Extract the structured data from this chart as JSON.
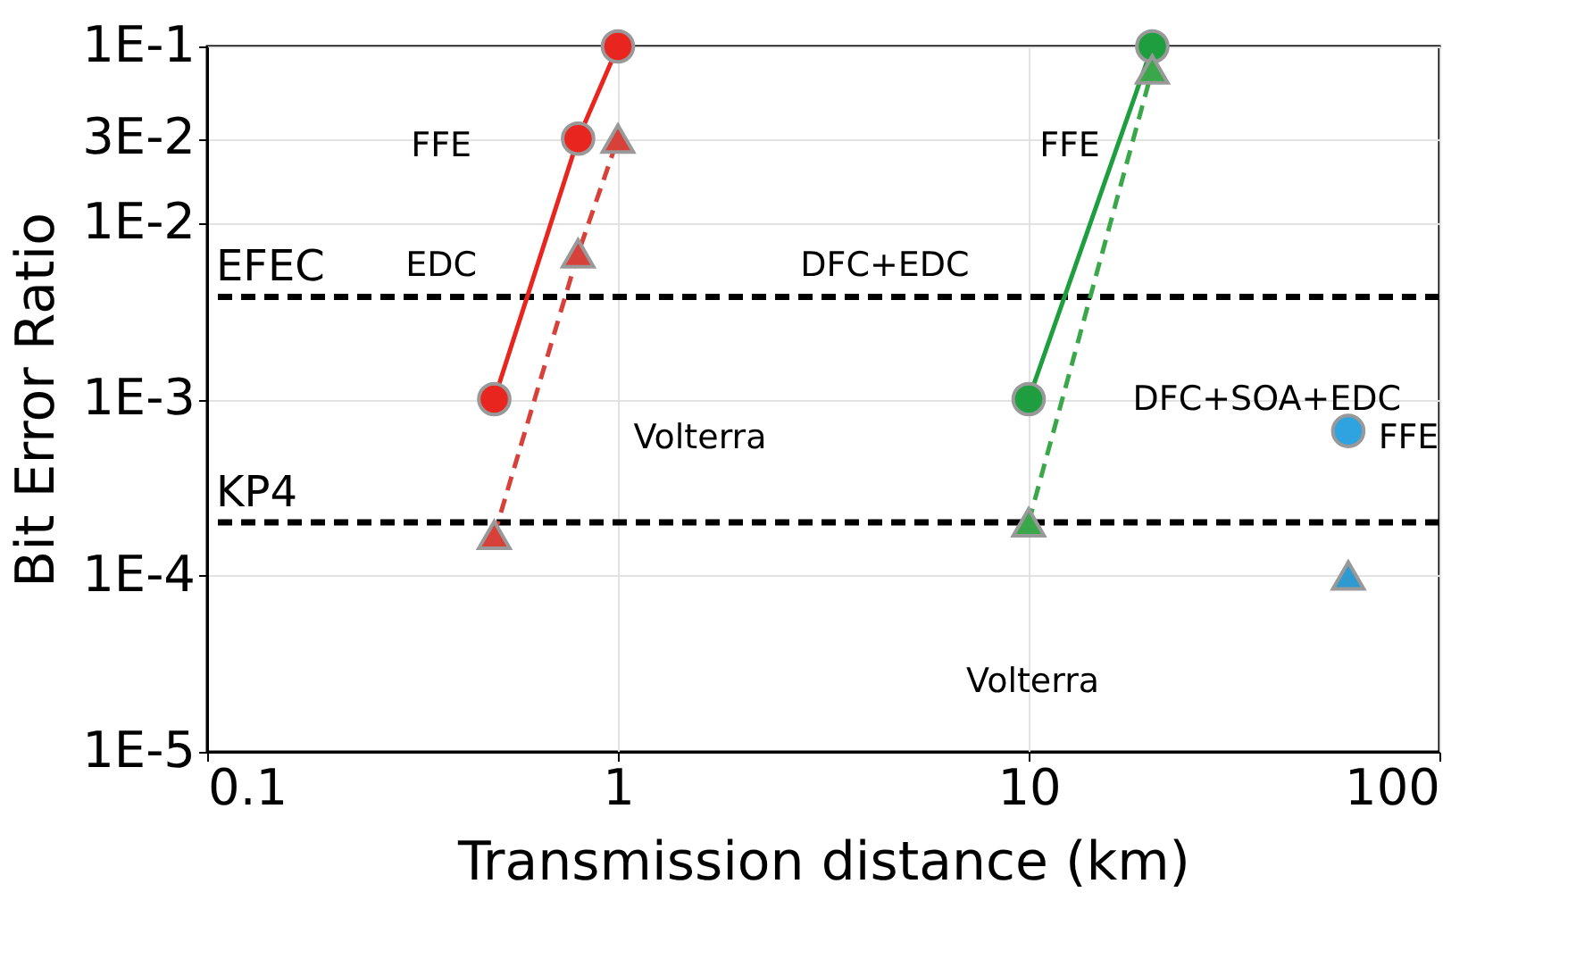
{
  "chart_data": {
    "type": "line",
    "xlabel": "Transmission distance (km)",
    "ylabel": "Bit Error Ratio",
    "log": "xy",
    "grid": true,
    "xlim": [
      0.1,
      100
    ],
    "xticks": [
      0.1,
      1,
      10,
      100
    ],
    "ylim": [
      1e-05,
      0.1
    ],
    "yticks": [
      {
        "value": 0.1,
        "label": "1E-1"
      },
      {
        "value": 0.03,
        "label": "3E-2"
      },
      {
        "value": 0.01,
        "label": "1E-2"
      },
      {
        "value": 0.001,
        "label": "1E-3"
      },
      {
        "value": 0.0001,
        "label": "1E-4"
      },
      {
        "value": 1e-05,
        "label": "1E-5"
      }
    ],
    "series": [
      {
        "color": "#e8261f",
        "marker": "circle",
        "line_style": "solid",
        "x": [
          0.5,
          0.8,
          1
        ],
        "values": [
          0.001,
          0.03,
          0.1
        ]
      },
      {
        "type": "line",
        "color": "#d8403a",
        "marker": "triangle",
        "line_style": "dashed",
        "x": [
          0.5,
          0.8,
          1
        ],
        "values": [
          0.00017,
          0.0067,
          0.03
        ]
      },
      {
        "color": "#1e9e3e",
        "marker": "circle",
        "line_style": "solid",
        "x": [
          10,
          20
        ],
        "values": [
          0.001,
          0.1
        ]
      },
      {
        "type": "line",
        "color": "#3aa84a",
        "marker": "triangle",
        "line_style": "dashed",
        "x": [
          10,
          20
        ],
        "values": [
          0.0002,
          0.074
        ]
      },
      {
        "type": "scatter",
        "color": "#2ea3e0",
        "marker": "circle",
        "x": [
          60
        ],
        "values": [
          0.00066
        ]
      },
      {
        "type": "scatter",
        "color": "#2e9ad0",
        "marker": "triangle",
        "x": [
          60
        ],
        "values": [
          0.0001
        ]
      }
    ],
    "ref_lines": [
      {
        "axis": "y",
        "value": 0.0038,
        "label": "EFEC",
        "line_style": "dashed",
        "color": "#000000"
      },
      {
        "axis": "y",
        "value": 0.0002,
        "label": "KP4",
        "line_style": "dashed",
        "color": "#000000"
      }
    ],
    "annotations": [
      "FFE",
      "EDC",
      "Volterra",
      "DFC+EDC",
      "FFE",
      "Volterra",
      "DFC+SOA+EDC",
      "FFE"
    ]
  }
}
